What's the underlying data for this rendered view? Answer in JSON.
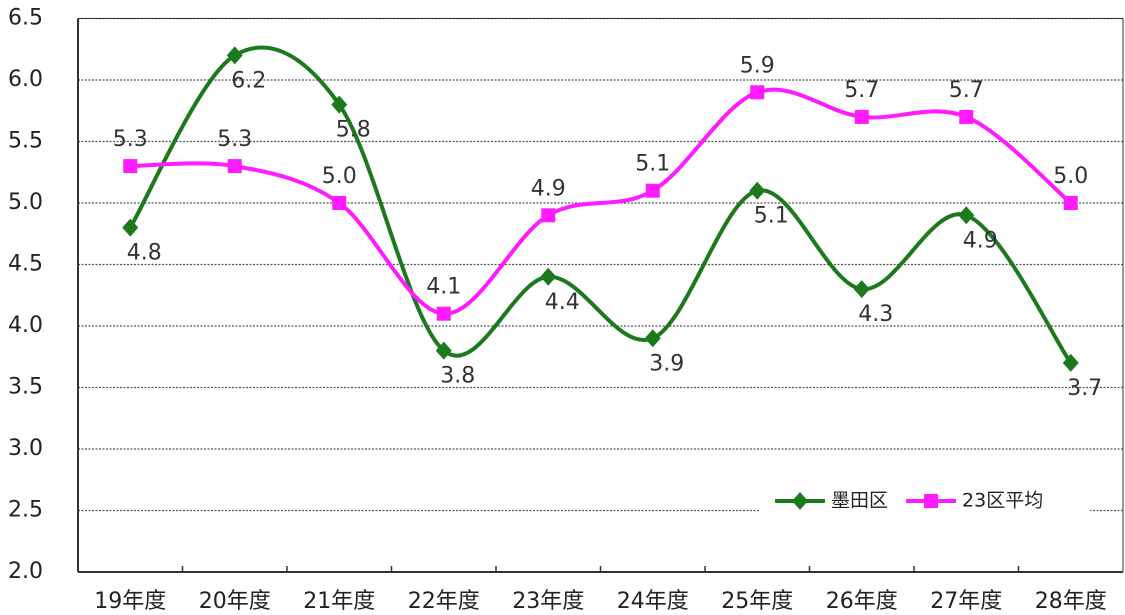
{
  "chart_data": {
    "type": "line",
    "categories": [
      "19年度",
      "20年度",
      "21年度",
      "22年度",
      "23年度",
      "24年度",
      "25年度",
      "26年度",
      "27年度",
      "28年度"
    ],
    "series": [
      {
        "name": "墨田区",
        "color": "#1c7a1c",
        "marker": "diamond",
        "values": [
          4.8,
          6.2,
          5.8,
          3.8,
          4.4,
          3.9,
          5.1,
          4.3,
          4.9,
          3.7
        ],
        "value_labels": [
          "4.8",
          "6.2",
          "5.8",
          "3.8",
          "4.4",
          "3.9",
          "5.1",
          "4.3",
          "4.9",
          "3.7"
        ]
      },
      {
        "name": "23区平均",
        "color": "#ff1aff",
        "marker": "square",
        "values": [
          5.3,
          5.3,
          5.0,
          4.1,
          4.9,
          5.1,
          5.9,
          5.7,
          5.7,
          5.0
        ],
        "value_labels": [
          "5.3",
          "5.3",
          "5.0",
          "4.1",
          "4.9",
          "5.1",
          "5.9",
          "5.7",
          "5.7",
          "5.0"
        ]
      }
    ],
    "ylim": [
      2.0,
      6.5
    ],
    "yticks": [
      {
        "value": 2.0,
        "label": "2.0"
      },
      {
        "value": 2.5,
        "label": "2.5"
      },
      {
        "value": 3.0,
        "label": "3.0"
      },
      {
        "value": 3.5,
        "label": "3.5"
      },
      {
        "value": 4.0,
        "label": "4.0"
      },
      {
        "value": 4.5,
        "label": "4.5"
      },
      {
        "value": 5.0,
        "label": "5.0"
      },
      {
        "value": 5.5,
        "label": "5.5"
      },
      {
        "value": 6.0,
        "label": "6.0"
      },
      {
        "value": 6.5,
        "label": "6.5"
      }
    ],
    "grid": true,
    "smooth": true,
    "legend": "lower right"
  }
}
